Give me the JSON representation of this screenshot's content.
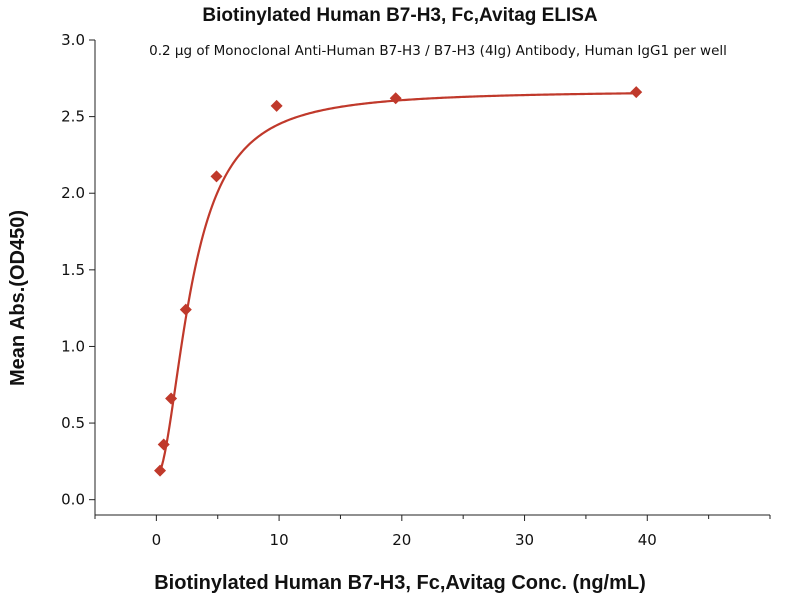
{
  "chart_data": {
    "type": "scatter",
    "title": "Biotinylated Human B7-H3, Fc,Avitag ELISA",
    "subtitle": "0.2 μg of Monoclonal Anti-Human B7-H3 / B7-H3 (4Ig) Antibody, Human IgG1 per well",
    "xlabel": "Biotinylated Human B7-H3, Fc,Avitag Conc. (ng/mL)",
    "ylabel": "Mean Abs.(OD450)",
    "xlim": [
      -5,
      50
    ],
    "ylim": [
      -0.1,
      3.0
    ],
    "xticks": [
      0,
      10,
      20,
      30,
      40
    ],
    "yticks": [
      0.0,
      0.5,
      1.0,
      1.5,
      2.0,
      2.5,
      3.0
    ],
    "xtick_labels": [
      "0",
      "10",
      "20",
      "30",
      "40"
    ],
    "ytick_labels": [
      "0.0",
      "0.5",
      "1.0",
      "1.5",
      "2.0",
      "2.5",
      "3.0"
    ],
    "grid": false,
    "marker": "diamond",
    "color": "#c0392b",
    "series": [
      {
        "x": [
          0.3,
          0.6,
          1.2,
          2.4,
          4.9,
          9.8,
          19.5,
          39.1
        ],
        "y": [
          0.19,
          0.36,
          0.66,
          1.24,
          2.11,
          2.57,
          2.62,
          2.66
        ]
      }
    ],
    "fit": {
      "type": "4PL",
      "bottom": 0.15,
      "top": 2.67,
      "ec50": 2.9,
      "hill": 1.9
    }
  }
}
